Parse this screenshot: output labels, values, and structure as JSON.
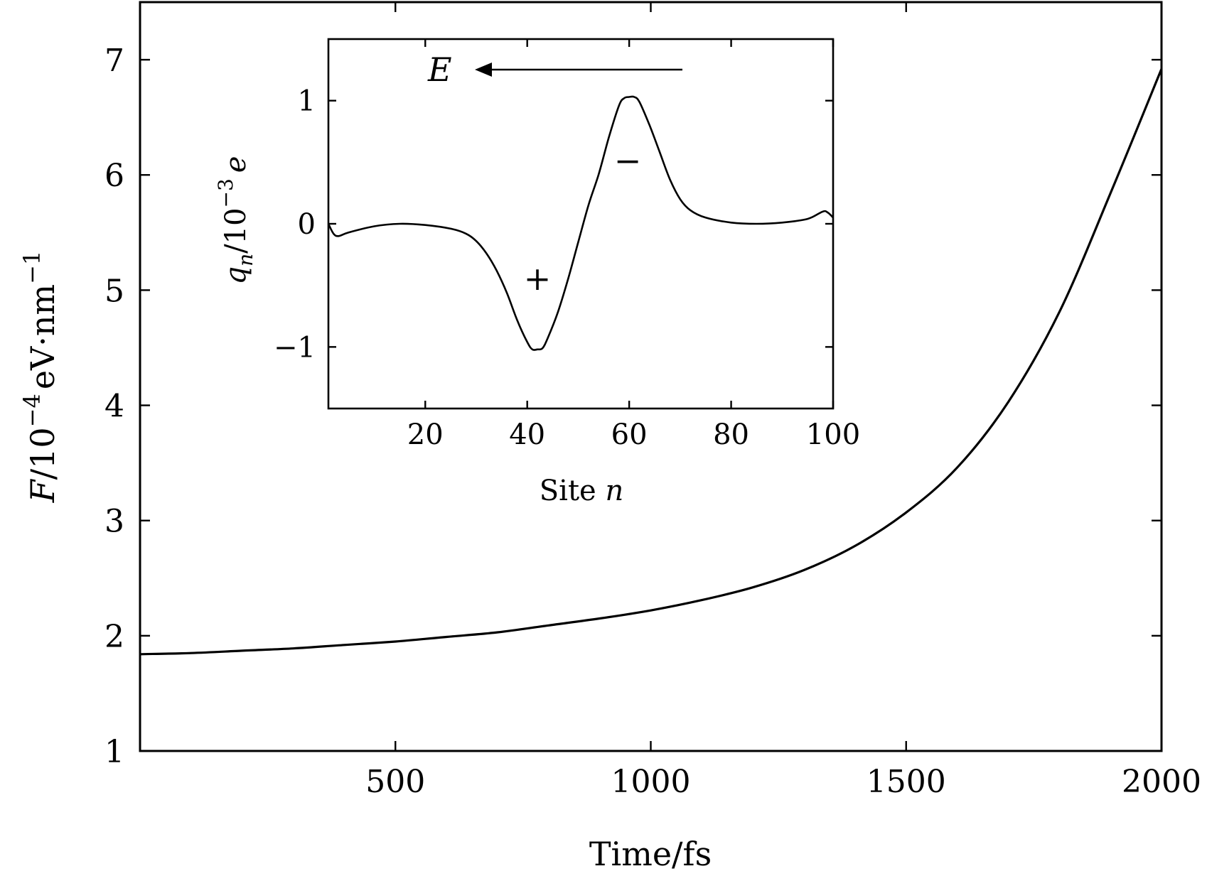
{
  "chart_data": [
    {
      "type": "line",
      "xlabel": "Time/fs",
      "ylabel_parts": {
        "var": "F",
        "base": "/10",
        "exp": "−4",
        "unit": "eV·nm",
        "unit_exp": "−1"
      },
      "xlim": [
        0,
        2000
      ],
      "ylim": [
        1,
        7.5
      ],
      "xticks": [
        500,
        1000,
        1500,
        2000
      ],
      "yticks": [
        1,
        2,
        3,
        4,
        5,
        6,
        7
      ],
      "color": "#000000",
      "series": [
        {
          "x": [
            0,
            100,
            200,
            300,
            400,
            500,
            600,
            700,
            800,
            900,
            1000,
            1100,
            1200,
            1300,
            1400,
            1500,
            1600,
            1700,
            1800,
            1900,
            2000
          ],
          "y": [
            1.84,
            1.85,
            1.87,
            1.89,
            1.92,
            1.95,
            1.99,
            2.03,
            2.09,
            2.15,
            2.22,
            2.31,
            2.42,
            2.57,
            2.78,
            3.07,
            3.46,
            4.03,
            4.81,
            5.84,
            6.92
          ]
        }
      ]
    },
    {
      "type": "line",
      "inset": true,
      "xlabel_parts": {
        "text": "Site ",
        "var": "n"
      },
      "ylabel_parts": {
        "var": "q",
        "sub": "n",
        "base": "/10",
        "exp": "−3",
        "unit": "e"
      },
      "xlim": [
        1,
        100
      ],
      "ylim": [
        -1.5,
        1.5
      ],
      "xticks": [
        20,
        40,
        60,
        80,
        100
      ],
      "yticks": [
        -1,
        0,
        1
      ],
      "ytick_labels": [
        "−1",
        "0",
        "1"
      ],
      "annotations": {
        "field": "E",
        "plus": "+",
        "minus": "−"
      },
      "color": "#000000",
      "series": [
        {
          "x": [
            1,
            2,
            3,
            5,
            10,
            15,
            20,
            25,
            28,
            30,
            32,
            34,
            36,
            38,
            40,
            41,
            42,
            43,
            44,
            46,
            48,
            50,
            52,
            54,
            56,
            58,
            59,
            60,
            61,
            62,
            64,
            66,
            68,
            70,
            72,
            75,
            80,
            85,
            90,
            95,
            98,
            99,
            100
          ],
          "y": [
            0,
            -0.08,
            -0.1,
            -0.07,
            -0.02,
            0,
            -0.01,
            -0.04,
            -0.08,
            -0.14,
            -0.24,
            -0.38,
            -0.56,
            -0.78,
            -0.96,
            -1.02,
            -1.02,
            -1.01,
            -0.93,
            -0.72,
            -0.45,
            -0.15,
            0.15,
            0.4,
            0.7,
            0.96,
            1.02,
            1.03,
            1.03,
            0.99,
            0.8,
            0.58,
            0.36,
            0.2,
            0.11,
            0.05,
            0.01,
            0,
            0.01,
            0.04,
            0.1,
            0.09,
            0.05
          ]
        }
      ]
    }
  ]
}
